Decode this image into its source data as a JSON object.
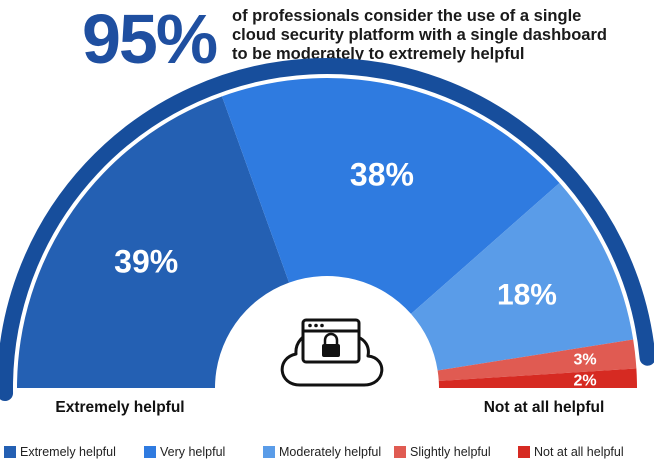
{
  "headline": {
    "big": "95%",
    "line1": "of professionals consider the use of a single",
    "line2": "cloud security platform with a single dashboard",
    "line3": "to be moderately to extremely helpful"
  },
  "chart_data": {
    "type": "pie",
    "categories": [
      "Extremely helpful",
      "Very helpful",
      "Moderately helpful",
      "Slightly helpful",
      "Not at all helpful"
    ],
    "values": [
      39,
      38,
      18,
      3,
      2
    ],
    "labels": [
      "39%",
      "38%",
      "18%",
      "3%",
      "2%"
    ],
    "colors": [
      "#2460b3",
      "#2f7be0",
      "#5a9ce8",
      "#e05b52",
      "#d62a22"
    ],
    "legend": [
      "Extremely helpful",
      "Very  helpful",
      "Moderately  helpful",
      "Slightly helpful",
      "Not at all  helpful"
    ],
    "legend_position": "bottom",
    "left_label": "Extremely helpful",
    "right_label": "Not at all helpful",
    "outer_arc_color": "#174e9c"
  },
  "icons": {
    "center": "cloud-lock-icon"
  }
}
